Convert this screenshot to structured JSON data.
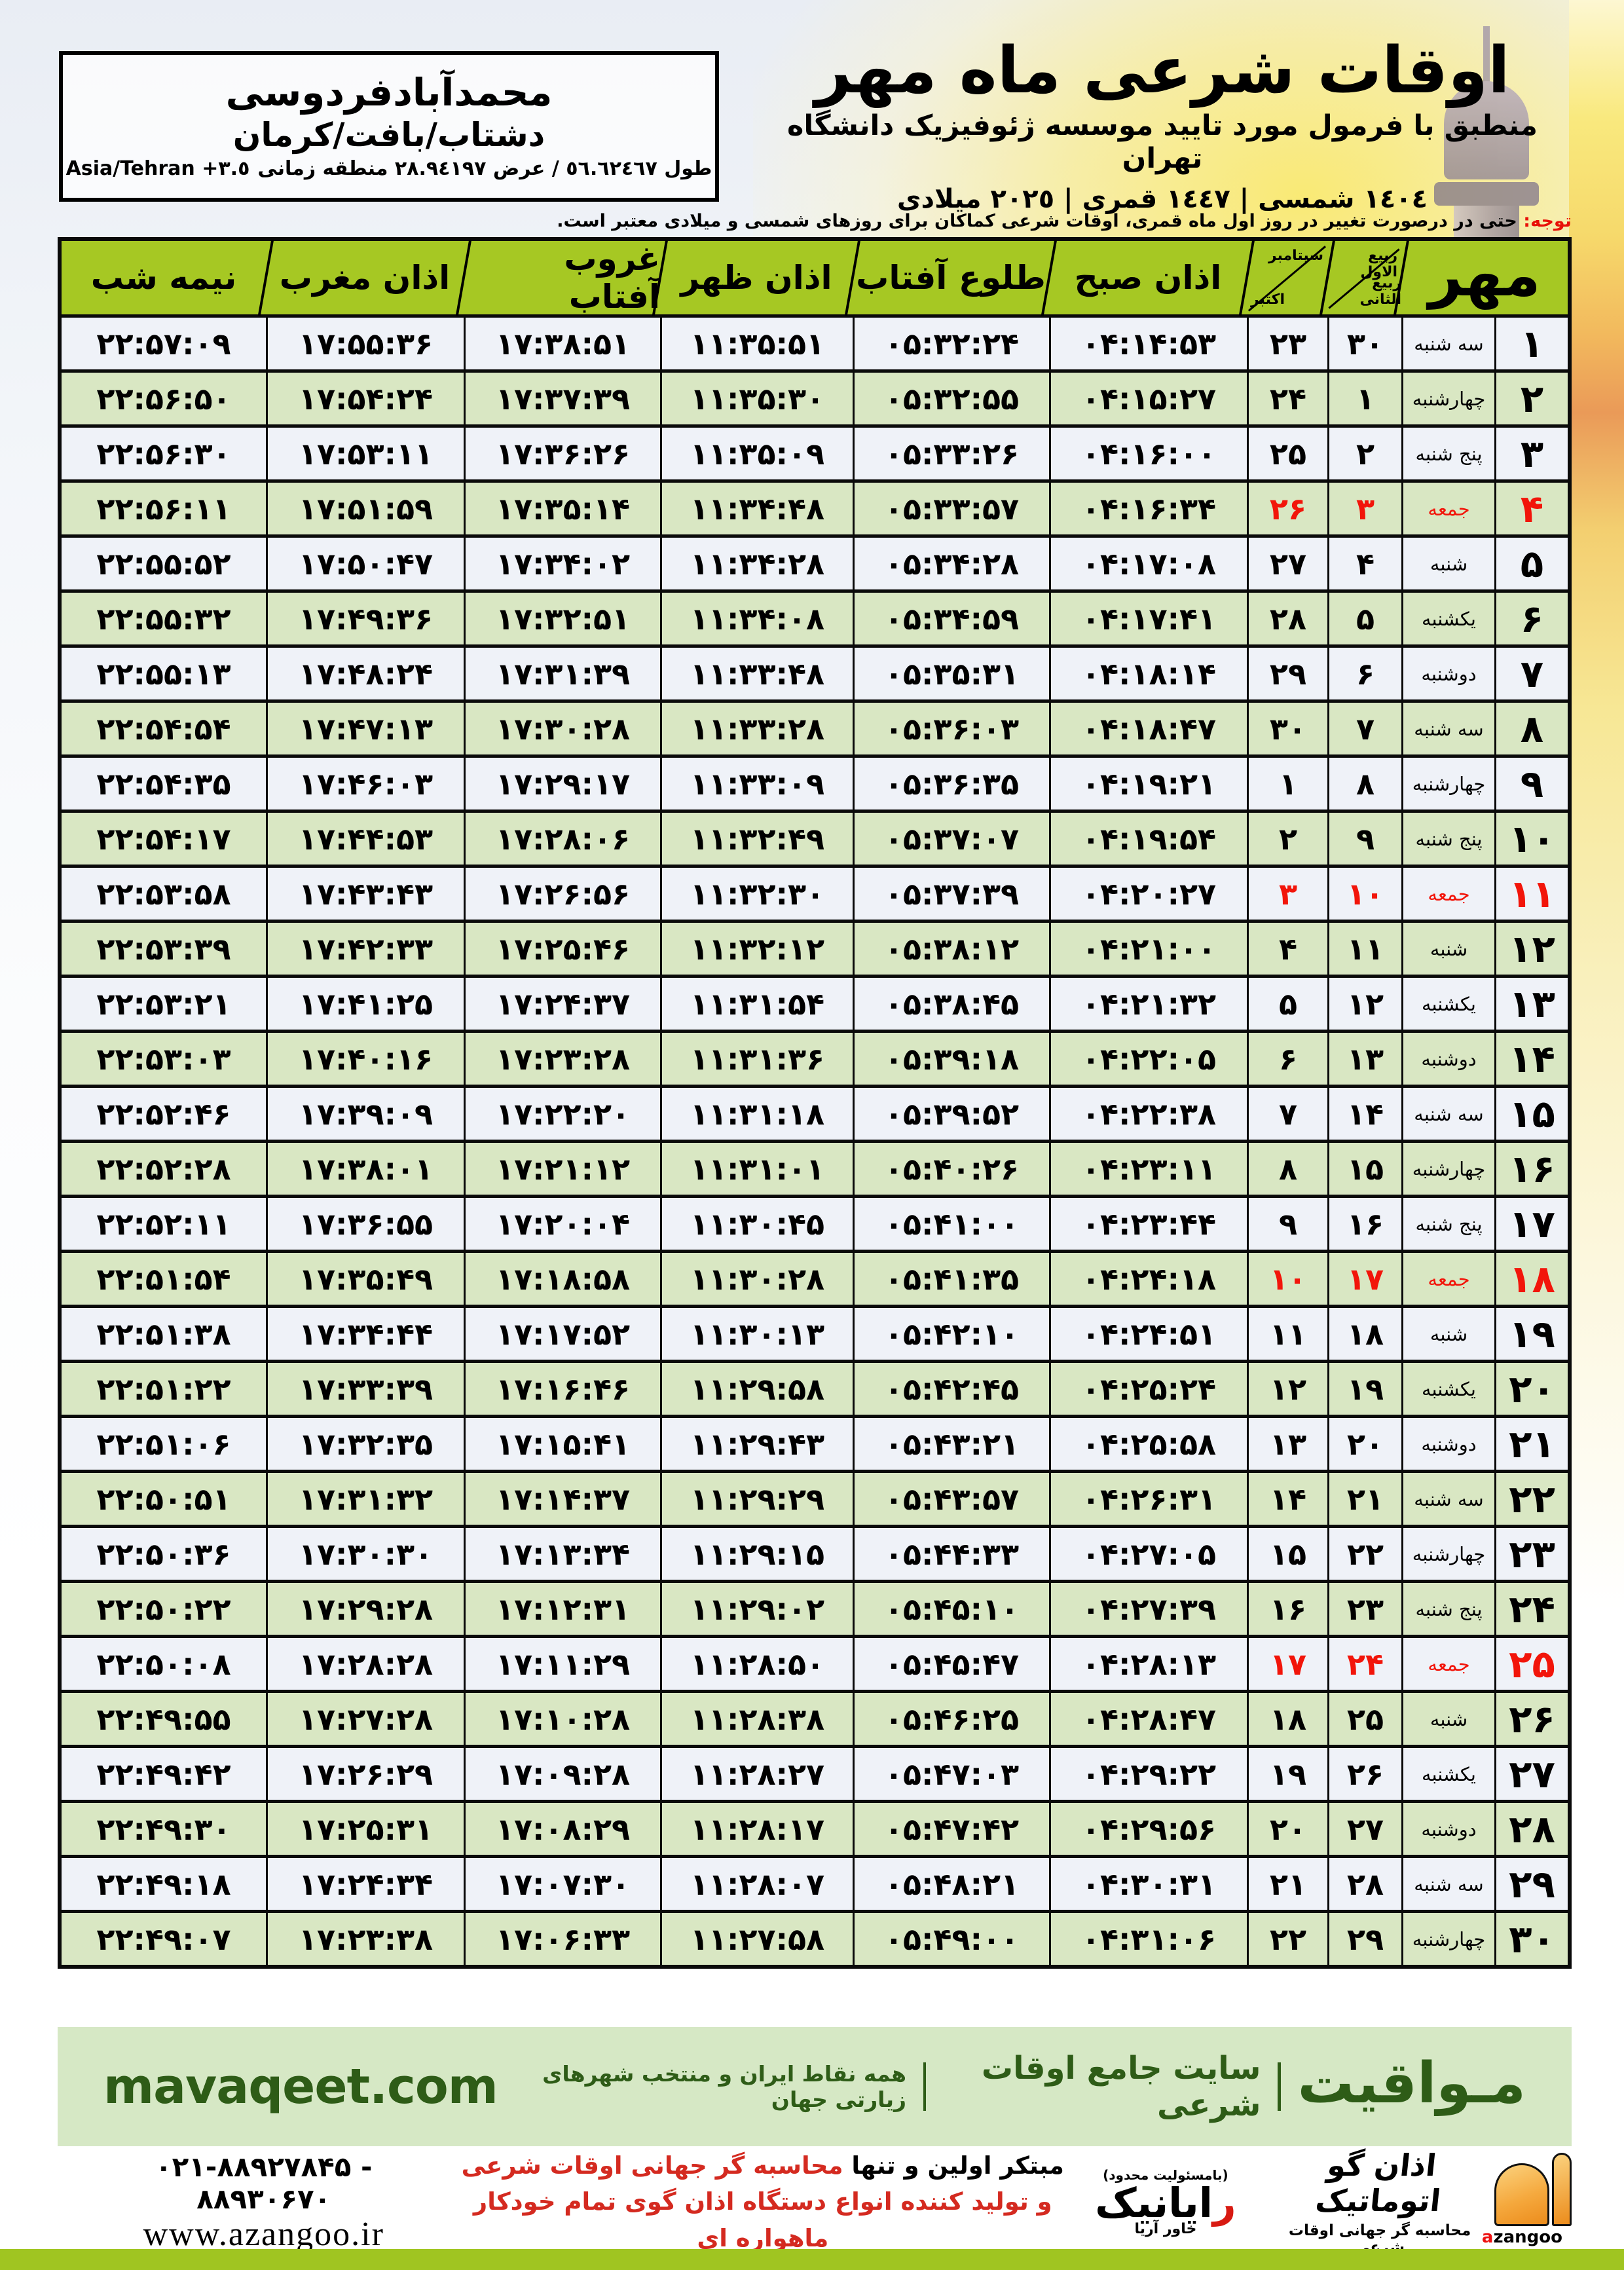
{
  "colors": {
    "header_green": "#a6c823",
    "row_light": "#eff2f8",
    "row_green": "#d9e7c3",
    "friday_red": "#f2150a",
    "footer_bg": "#d6e8c5",
    "footer_text_green": "#2e5c17",
    "lime_bar": "#a0c521",
    "logo_orange": "#f0a03c"
  },
  "location": {
    "city": "محمدآبادفردوسی",
    "region": "دشتاب/بافت/کرمان",
    "coords_fa": "طول ٥٦.٦٢٤٦٧ / عرض ٢٨.٩٤١٩٧ منطقه زمانی",
    "coords_latin": "Asia/Tehran +٣.٥"
  },
  "header": {
    "title": "اوقات شرعی ماه مهر",
    "subtitle": "منطبق با فرمول مورد تایید موسسه ژئوفیزیک دانشگاه تهران",
    "years": "١٤٠٤ شمسی | ١٤٤٧ قمری | ٢٠٢٥ میلادی"
  },
  "notice": {
    "label": "توجه:",
    "text": " حتی در درصورت تغییر در روز اول ماه قمری، اوقات شرعی کماکان برای روزهای شمسی و میلادی معتبر است."
  },
  "table": {
    "month_label": "مهر",
    "lunar_header_top": "ربیع الاول",
    "lunar_header_bottom": "ربیع الثانی",
    "gregorian_header_top": "سپتامبر",
    "gregorian_header_bottom": "اکتبر",
    "columns": {
      "azan_sobh": "اذان صبح",
      "tolu_aftab": "طلوع آفتاب",
      "azan_zohr": "اذان ظهر",
      "ghorub_aftab": "غروب آفتاب",
      "azan_maghreb": "اذان مغرب",
      "nimeh_shab": "نیمه شب"
    },
    "rows": [
      {
        "day": "۱",
        "weekday": "سه شنبه",
        "lunar": "۳۰",
        "greg": "۲۳",
        "sobh": "۰۴:۱۴:۵۳",
        "tolu": "۰۵:۳۲:۲۴",
        "zohr": "۱۱:۳۵:۵۱",
        "ghorub": "۱۷:۳۸:۵۱",
        "maghreb": "۱۷:۵۵:۳۶",
        "nimeshab": "۲۲:۵۷:۰۹",
        "friday": false
      },
      {
        "day": "۲",
        "weekday": "چهارشنبه",
        "lunar": "۱",
        "greg": "۲۴",
        "sobh": "۰۴:۱۵:۲۷",
        "tolu": "۰۵:۳۲:۵۵",
        "zohr": "۱۱:۳۵:۳۰",
        "ghorub": "۱۷:۳۷:۳۹",
        "maghreb": "۱۷:۵۴:۲۴",
        "nimeshab": "۲۲:۵۶:۵۰",
        "friday": false
      },
      {
        "day": "۳",
        "weekday": "پنج شنبه",
        "lunar": "۲",
        "greg": "۲۵",
        "sobh": "۰۴:۱۶:۰۰",
        "tolu": "۰۵:۳۳:۲۶",
        "zohr": "۱۱:۳۵:۰۹",
        "ghorub": "۱۷:۳۶:۲۶",
        "maghreb": "۱۷:۵۳:۱۱",
        "nimeshab": "۲۲:۵۶:۳۰",
        "friday": false
      },
      {
        "day": "۴",
        "weekday": "جمعه",
        "lunar": "۳",
        "greg": "۲۶",
        "sobh": "۰۴:۱۶:۳۴",
        "tolu": "۰۵:۳۳:۵۷",
        "zohr": "۱۱:۳۴:۴۸",
        "ghorub": "۱۷:۳۵:۱۴",
        "maghreb": "۱۷:۵۱:۵۹",
        "nimeshab": "۲۲:۵۶:۱۱",
        "friday": true
      },
      {
        "day": "۵",
        "weekday": "شنبه",
        "lunar": "۴",
        "greg": "۲۷",
        "sobh": "۰۴:۱۷:۰۸",
        "tolu": "۰۵:۳۴:۲۸",
        "zohr": "۱۱:۳۴:۲۸",
        "ghorub": "۱۷:۳۴:۰۲",
        "maghreb": "۱۷:۵۰:۴۷",
        "nimeshab": "۲۲:۵۵:۵۲",
        "friday": false
      },
      {
        "day": "۶",
        "weekday": "یکشنبه",
        "lunar": "۵",
        "greg": "۲۸",
        "sobh": "۰۴:۱۷:۴۱",
        "tolu": "۰۵:۳۴:۵۹",
        "zohr": "۱۱:۳۴:۰۸",
        "ghorub": "۱۷:۳۲:۵۱",
        "maghreb": "۱۷:۴۹:۳۶",
        "nimeshab": "۲۲:۵۵:۳۲",
        "friday": false
      },
      {
        "day": "۷",
        "weekday": "دوشنبه",
        "lunar": "۶",
        "greg": "۲۹",
        "sobh": "۰۴:۱۸:۱۴",
        "tolu": "۰۵:۳۵:۳۱",
        "zohr": "۱۱:۳۳:۴۸",
        "ghorub": "۱۷:۳۱:۳۹",
        "maghreb": "۱۷:۴۸:۲۴",
        "nimeshab": "۲۲:۵۵:۱۳",
        "friday": false
      },
      {
        "day": "۸",
        "weekday": "سه شنبه",
        "lunar": "۷",
        "greg": "۳۰",
        "sobh": "۰۴:۱۸:۴۷",
        "tolu": "۰۵:۳۶:۰۳",
        "zohr": "۱۱:۳۳:۲۸",
        "ghorub": "۱۷:۳۰:۲۸",
        "maghreb": "۱۷:۴۷:۱۳",
        "nimeshab": "۲۲:۵۴:۵۴",
        "friday": false
      },
      {
        "day": "۹",
        "weekday": "چهارشنبه",
        "lunar": "۸",
        "greg": "۱",
        "sobh": "۰۴:۱۹:۲۱",
        "tolu": "۰۵:۳۶:۳۵",
        "zohr": "۱۱:۳۳:۰۹",
        "ghorub": "۱۷:۲۹:۱۷",
        "maghreb": "۱۷:۴۶:۰۳",
        "nimeshab": "۲۲:۵۴:۳۵",
        "friday": false
      },
      {
        "day": "۱۰",
        "weekday": "پنج شنبه",
        "lunar": "۹",
        "greg": "۲",
        "sobh": "۰۴:۱۹:۵۴",
        "tolu": "۰۵:۳۷:۰۷",
        "zohr": "۱۱:۳۲:۴۹",
        "ghorub": "۱۷:۲۸:۰۶",
        "maghreb": "۱۷:۴۴:۵۳",
        "nimeshab": "۲۲:۵۴:۱۷",
        "friday": false
      },
      {
        "day": "۱۱",
        "weekday": "جمعه",
        "lunar": "۱۰",
        "greg": "۳",
        "sobh": "۰۴:۲۰:۲۷",
        "tolu": "۰۵:۳۷:۳۹",
        "zohr": "۱۱:۳۲:۳۰",
        "ghorub": "۱۷:۲۶:۵۶",
        "maghreb": "۱۷:۴۳:۴۳",
        "nimeshab": "۲۲:۵۳:۵۸",
        "friday": true
      },
      {
        "day": "۱۲",
        "weekday": "شنبه",
        "lunar": "۱۱",
        "greg": "۴",
        "sobh": "۰۴:۲۱:۰۰",
        "tolu": "۰۵:۳۸:۱۲",
        "zohr": "۱۱:۳۲:۱۲",
        "ghorub": "۱۷:۲۵:۴۶",
        "maghreb": "۱۷:۴۲:۳۳",
        "nimeshab": "۲۲:۵۳:۳۹",
        "friday": false
      },
      {
        "day": "۱۳",
        "weekday": "یکشنبه",
        "lunar": "۱۲",
        "greg": "۵",
        "sobh": "۰۴:۲۱:۳۲",
        "tolu": "۰۵:۳۸:۴۵",
        "zohr": "۱۱:۳۱:۵۴",
        "ghorub": "۱۷:۲۴:۳۷",
        "maghreb": "۱۷:۴۱:۲۵",
        "nimeshab": "۲۲:۵۳:۲۱",
        "friday": false
      },
      {
        "day": "۱۴",
        "weekday": "دوشنبه",
        "lunar": "۱۳",
        "greg": "۶",
        "sobh": "۰۴:۲۲:۰۵",
        "tolu": "۰۵:۳۹:۱۸",
        "zohr": "۱۱:۳۱:۳۶",
        "ghorub": "۱۷:۲۳:۲۸",
        "maghreb": "۱۷:۴۰:۱۶",
        "nimeshab": "۲۲:۵۳:۰۳",
        "friday": false
      },
      {
        "day": "۱۵",
        "weekday": "سه شنبه",
        "lunar": "۱۴",
        "greg": "۷",
        "sobh": "۰۴:۲۲:۳۸",
        "tolu": "۰۵:۳۹:۵۲",
        "zohr": "۱۱:۳۱:۱۸",
        "ghorub": "۱۷:۲۲:۲۰",
        "maghreb": "۱۷:۳۹:۰۹",
        "nimeshab": "۲۲:۵۲:۴۶",
        "friday": false
      },
      {
        "day": "۱۶",
        "weekday": "چهارشنبه",
        "lunar": "۱۵",
        "greg": "۸",
        "sobh": "۰۴:۲۳:۱۱",
        "tolu": "۰۵:۴۰:۲۶",
        "zohr": "۱۱:۳۱:۰۱",
        "ghorub": "۱۷:۲۱:۱۲",
        "maghreb": "۱۷:۳۸:۰۱",
        "nimeshab": "۲۲:۵۲:۲۸",
        "friday": false
      },
      {
        "day": "۱۷",
        "weekday": "پنج شنبه",
        "lunar": "۱۶",
        "greg": "۹",
        "sobh": "۰۴:۲۳:۴۴",
        "tolu": "۰۵:۴۱:۰۰",
        "zohr": "۱۱:۳۰:۴۵",
        "ghorub": "۱۷:۲۰:۰۴",
        "maghreb": "۱۷:۳۶:۵۵",
        "nimeshab": "۲۲:۵۲:۱۱",
        "friday": false
      },
      {
        "day": "۱۸",
        "weekday": "جمعه",
        "lunar": "۱۷",
        "greg": "۱۰",
        "sobh": "۰۴:۲۴:۱۸",
        "tolu": "۰۵:۴۱:۳۵",
        "zohr": "۱۱:۳۰:۲۸",
        "ghorub": "۱۷:۱۸:۵۸",
        "maghreb": "۱۷:۳۵:۴۹",
        "nimeshab": "۲۲:۵۱:۵۴",
        "friday": true
      },
      {
        "day": "۱۹",
        "weekday": "شنبه",
        "lunar": "۱۸",
        "greg": "۱۱",
        "sobh": "۰۴:۲۴:۵۱",
        "tolu": "۰۵:۴۲:۱۰",
        "zohr": "۱۱:۳۰:۱۳",
        "ghorub": "۱۷:۱۷:۵۲",
        "maghreb": "۱۷:۳۴:۴۴",
        "nimeshab": "۲۲:۵۱:۳۸",
        "friday": false
      },
      {
        "day": "۲۰",
        "weekday": "یکشنبه",
        "lunar": "۱۹",
        "greg": "۱۲",
        "sobh": "۰۴:۲۵:۲۴",
        "tolu": "۰۵:۴۲:۴۵",
        "zohr": "۱۱:۲۹:۵۸",
        "ghorub": "۱۷:۱۶:۴۶",
        "maghreb": "۱۷:۳۳:۳۹",
        "nimeshab": "۲۲:۵۱:۲۲",
        "friday": false
      },
      {
        "day": "۲۱",
        "weekday": "دوشنبه",
        "lunar": "۲۰",
        "greg": "۱۳",
        "sobh": "۰۴:۲۵:۵۸",
        "tolu": "۰۵:۴۳:۲۱",
        "zohr": "۱۱:۲۹:۴۳",
        "ghorub": "۱۷:۱۵:۴۱",
        "maghreb": "۱۷:۳۲:۳۵",
        "nimeshab": "۲۲:۵۱:۰۶",
        "friday": false
      },
      {
        "day": "۲۲",
        "weekday": "سه شنبه",
        "lunar": "۲۱",
        "greg": "۱۴",
        "sobh": "۰۴:۲۶:۳۱",
        "tolu": "۰۵:۴۳:۵۷",
        "zohr": "۱۱:۲۹:۲۹",
        "ghorub": "۱۷:۱۴:۳۷",
        "maghreb": "۱۷:۳۱:۳۲",
        "nimeshab": "۲۲:۵۰:۵۱",
        "friday": false
      },
      {
        "day": "۲۳",
        "weekday": "چهارشنبه",
        "lunar": "۲۲",
        "greg": "۱۵",
        "sobh": "۰۴:۲۷:۰۵",
        "tolu": "۰۵:۴۴:۳۳",
        "zohr": "۱۱:۲۹:۱۵",
        "ghorub": "۱۷:۱۳:۳۴",
        "maghreb": "۱۷:۳۰:۳۰",
        "nimeshab": "۲۲:۵۰:۳۶",
        "friday": false
      },
      {
        "day": "۲۴",
        "weekday": "پنج شنبه",
        "lunar": "۲۳",
        "greg": "۱۶",
        "sobh": "۰۴:۲۷:۳۹",
        "tolu": "۰۵:۴۵:۱۰",
        "zohr": "۱۱:۲۹:۰۲",
        "ghorub": "۱۷:۱۲:۳۱",
        "maghreb": "۱۷:۲۹:۲۸",
        "nimeshab": "۲۲:۵۰:۲۲",
        "friday": false
      },
      {
        "day": "۲۵",
        "weekday": "جمعه",
        "lunar": "۲۴",
        "greg": "۱۷",
        "sobh": "۰۴:۲۸:۱۳",
        "tolu": "۰۵:۴۵:۴۷",
        "zohr": "۱۱:۲۸:۵۰",
        "ghorub": "۱۷:۱۱:۲۹",
        "maghreb": "۱۷:۲۸:۲۸",
        "nimeshab": "۲۲:۵۰:۰۸",
        "friday": true
      },
      {
        "day": "۲۶",
        "weekday": "شنبه",
        "lunar": "۲۵",
        "greg": "۱۸",
        "sobh": "۰۴:۲۸:۴۷",
        "tolu": "۰۵:۴۶:۲۵",
        "zohr": "۱۱:۲۸:۳۸",
        "ghorub": "۱۷:۱۰:۲۸",
        "maghreb": "۱۷:۲۷:۲۸",
        "nimeshab": "۲۲:۴۹:۵۵",
        "friday": false
      },
      {
        "day": "۲۷",
        "weekday": "یکشنبه",
        "lunar": "۲۶",
        "greg": "۱۹",
        "sobh": "۰۴:۲۹:۲۲",
        "tolu": "۰۵:۴۷:۰۳",
        "zohr": "۱۱:۲۸:۲۷",
        "ghorub": "۱۷:۰۹:۲۸",
        "maghreb": "۱۷:۲۶:۲۹",
        "nimeshab": "۲۲:۴۹:۴۲",
        "friday": false
      },
      {
        "day": "۲۸",
        "weekday": "دوشنبه",
        "lunar": "۲۷",
        "greg": "۲۰",
        "sobh": "۰۴:۲۹:۵۶",
        "tolu": "۰۵:۴۷:۴۲",
        "zohr": "۱۱:۲۸:۱۷",
        "ghorub": "۱۷:۰۸:۲۹",
        "maghreb": "۱۷:۲۵:۳۱",
        "nimeshab": "۲۲:۴۹:۳۰",
        "friday": false
      },
      {
        "day": "۲۹",
        "weekday": "سه شنبه",
        "lunar": "۲۸",
        "greg": "۲۱",
        "sobh": "۰۴:۳۰:۳۱",
        "tolu": "۰۵:۴۸:۲۱",
        "zohr": "۱۱:۲۸:۰۷",
        "ghorub": "۱۷:۰۷:۳۰",
        "maghreb": "۱۷:۲۴:۳۴",
        "nimeshab": "۲۲:۴۹:۱۸",
        "friday": false
      },
      {
        "day": "۳۰",
        "weekday": "چهارشنبه",
        "lunar": "۲۹",
        "greg": "۲۲",
        "sobh": "۰۴:۳۱:۰۶",
        "tolu": "۰۵:۴۹:۰۰",
        "zohr": "۱۱:۲۷:۵۸",
        "ghorub": "۱۷:۰۶:۳۳",
        "maghreb": "۱۷:۲۳:۳۸",
        "nimeshab": "۲۲:۴۹:۰۷",
        "friday": false
      }
    ]
  },
  "footer": {
    "site_url": "mavaqeet.com",
    "brand": "مـواقیت",
    "tagline": "سایت جامع اوقات شرعی",
    "description": "همه نقاط ایران و منتخب شهرهای زیارتی جهان"
  },
  "bottom": {
    "slogan_black": "مبتکر اولین و تنها ",
    "slogan_red1": "محاسبه گر جهانی اوقات شرعی",
    "slogan_red2": "و تولید کننده انواع دستگاه اذان گوی تمام خودکار ماهواره ای",
    "phone": "۰۲۱-۸۸۹۲۷۸۴۵ - ۸۸۹۳۰۶۷۰",
    "website": "www.azangoo.ir",
    "azangoo_name": "اذان گو اتوماتیک",
    "azangoo_sub": "محاسبه گر جهانی اوقات شرعی",
    "azangoo_brand_a": "a",
    "azangoo_brand_rest": "zangoo",
    "rayanik_note": "(بامسئولیت محدود)",
    "rayanik_r": "ر",
    "rayanik_rest": "ایانیک",
    "rayanik_sub": "خاور آریا"
  }
}
